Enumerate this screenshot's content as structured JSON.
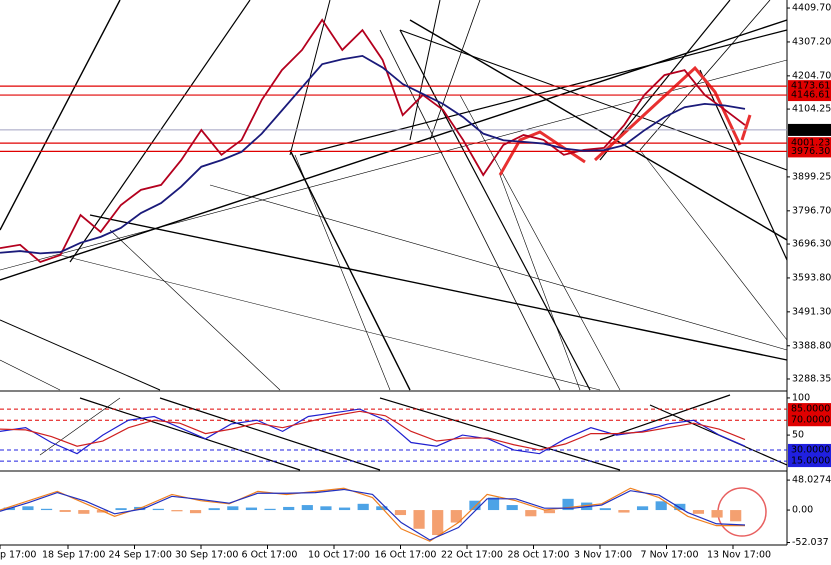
{
  "chart_data": [
    {
      "type": "line",
      "series": [
        {
          "color": "#b4001e",
          "values": [
            3684,
            3694,
            3642,
            3663,
            3784,
            3733,
            3814,
            3860,
            3875,
            3950,
            4041,
            3966,
            4011,
            4132,
            4222,
            4283,
            4374,
            4283,
            4343,
            4253,
            4086,
            4147,
            4102,
            4011,
            3905,
            3996,
            4026,
            4011,
            3966,
            3981,
            3987,
            4056,
            4147,
            4207,
            4222,
            4147,
            4102,
            4056
          ]
        },
        {
          "color": "#1a1a7a",
          "values": [
            3670,
            3675,
            3668,
            3672,
            3700,
            3718,
            3745,
            3790,
            3820,
            3870,
            3930,
            3950,
            3975,
            4030,
            4100,
            4170,
            4240,
            4255,
            4265,
            4230,
            4180,
            4150,
            4120,
            4080,
            4030,
            4010,
            4005,
            4000,
            3985,
            3978,
            3980,
            3995,
            4040,
            4080,
            4110,
            4120,
            4115,
            4105
          ]
        }
      ],
      "ylim": [
        3249,
        4434
      ],
      "yticks": [
        {
          "value": 4409.7,
          "label": "4409.70"
        },
        {
          "value": 4307.2,
          "label": "4307.20"
        },
        {
          "value": 4204.7,
          "label": "4204.70"
        },
        4104.25,
        3899.25,
        {
          "value": 3796.7,
          "label": "3796.70"
        },
        {
          "value": 3696.3,
          "label": "3696.30"
        },
        {
          "value": 3593.8,
          "label": "3593.80"
        },
        {
          "value": 3491.3,
          "label": "3491.30"
        },
        {
          "value": 3388.8,
          "label": "3388.80"
        },
        3288.35
      ],
      "levels": [
        4173.61,
        4146.61,
        4001.23,
        {
          "value": 3976.3,
          "label": "3976.30"
        }
      ],
      "level_color": "#e00000",
      "last_price": 4041.24
    },
    {
      "type": "line",
      "series": [
        {
          "color": "#2020d0",
          "values": [
            55,
            60,
            40,
            25,
            50,
            70,
            75,
            60,
            45,
            65,
            70,
            55,
            75,
            80,
            85,
            70,
            40,
            35,
            50,
            45,
            30,
            25,
            45,
            60,
            50,
            55,
            65,
            70,
            50,
            35
          ]
        },
        {
          "color": "#d02020",
          "values": [
            58,
            57,
            48,
            35,
            42,
            60,
            70,
            66,
            52,
            58,
            66,
            60,
            68,
            76,
            82,
            76,
            55,
            42,
            46,
            46,
            37,
            30,
            38,
            52,
            52,
            54,
            60,
            66,
            58,
            44
          ]
        }
      ],
      "ylim": [
        3,
        108
      ],
      "yticks": [
        100,
        {
          "value": 85,
          "label": "85.0000"
        },
        {
          "value": 70,
          "label": "70.0000"
        },
        50,
        {
          "value": 30,
          "label": "30.0000"
        },
        {
          "value": 15,
          "label": "15.0000"
        }
      ],
      "tick_colors": [
        null,
        "#e00000",
        "#e00000",
        null,
        "#2020e0",
        "#2020e0"
      ]
    },
    {
      "type": "bar",
      "values": [
        4,
        6,
        2,
        -3,
        -6,
        -4,
        3,
        5,
        2,
        -2,
        -5,
        3,
        6,
        4,
        2,
        5,
        8,
        6,
        4,
        10,
        6,
        -8,
        -30,
        -40,
        -20,
        15,
        20,
        8,
        -10,
        -5,
        18,
        12,
        3,
        -4,
        6,
        14,
        10,
        -6,
        -12,
        -18
      ],
      "color": "#4da3e6",
      "neg_color": "#f4a070",
      "series": [
        {
          "color": "#f08020",
          "values": [
            0,
            15,
            30,
            10,
            -10,
            5,
            25,
            15,
            10,
            30,
            25,
            30,
            35,
            20,
            -30,
            -50,
            -20,
            25,
            15,
            0,
            5,
            10,
            35,
            20,
            -10,
            -25,
            -25
          ]
        },
        {
          "color": "#2030c0",
          "values": [
            -2,
            12,
            28,
            14,
            -6,
            2,
            22,
            17,
            11,
            27,
            27,
            28,
            33,
            25,
            -20,
            -48,
            -28,
            18,
            18,
            3,
            3,
            8,
            31,
            24,
            -4,
            -22,
            -24
          ]
        }
      ],
      "ylim": [
        -56,
        61
      ],
      "yticks": [
        48.0274,
        {
          "value": 0,
          "label": "0.00"
        },
        -52.037
      ]
    }
  ],
  "time_axis": [
    "p 17:00",
    "18 Sep 17:00",
    "24 Sep 17:00",
    "30 Sep 17:00",
    "6 Oct 17:00",
    "10 Oct 17:00",
    "16 Oct 17:00",
    "22 Oct 17:00",
    "28 Oct 17:00",
    "3 Nov 17:00",
    "7 Nov 17:00",
    "13 Nov 17:00"
  ]
}
